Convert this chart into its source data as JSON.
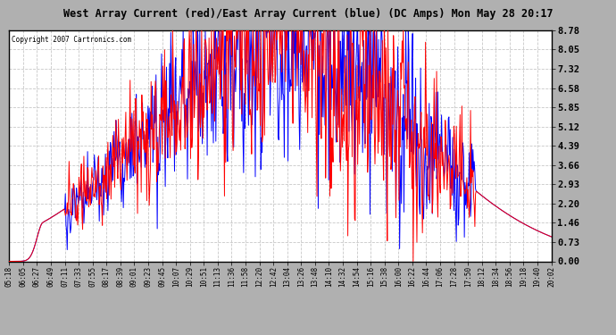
{
  "title": "West Array Current (red)/East Array Current (blue) (DC Amps) Mon May 28 20:17",
  "copyright": "Copyright 2007 Cartronics.com",
  "yticks": [
    0.0,
    0.73,
    1.46,
    2.2,
    2.93,
    3.66,
    4.39,
    5.12,
    5.85,
    6.58,
    7.32,
    8.05,
    8.78
  ],
  "ylim": [
    0.0,
    8.78
  ],
  "xtick_labels": [
    "05:18",
    "06:05",
    "06:27",
    "06:49",
    "07:11",
    "07:33",
    "07:55",
    "08:17",
    "08:39",
    "09:01",
    "09:23",
    "09:45",
    "10:07",
    "10:29",
    "10:51",
    "11:13",
    "11:36",
    "11:58",
    "12:20",
    "12:42",
    "13:04",
    "13:26",
    "13:48",
    "14:10",
    "14:32",
    "14:54",
    "15:16",
    "15:38",
    "16:00",
    "16:22",
    "16:44",
    "17:06",
    "17:28",
    "17:50",
    "18:12",
    "18:34",
    "18:56",
    "19:18",
    "19:40",
    "20:02"
  ],
  "bg_color": "#ffffff",
  "grid_color": "#c8c8c8",
  "red_color": "#ff0000",
  "blue_color": "#0000ff",
  "title_bg": "#c0c0c0",
  "outer_bg": "#b0b0b0"
}
